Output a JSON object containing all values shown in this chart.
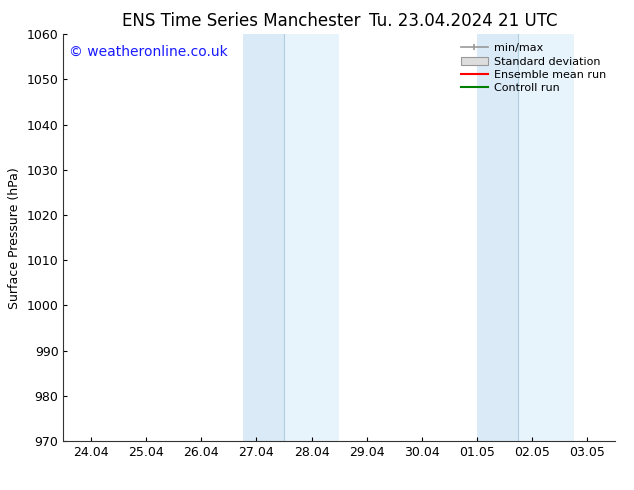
{
  "title_left": "ENS Time Series Manchester",
  "title_right": "Tu. 23.04.2024 21 UTC",
  "ylabel": "Surface Pressure (hPa)",
  "ylim": [
    970,
    1060
  ],
  "yticks": [
    970,
    980,
    990,
    1000,
    1010,
    1020,
    1030,
    1040,
    1050,
    1060
  ],
  "xlim_start": -0.5,
  "xlim_end": 9.5,
  "xtick_labels": [
    "24.04",
    "25.04",
    "26.04",
    "27.04",
    "28.04",
    "29.04",
    "30.04",
    "01.05",
    "02.05",
    "03.05"
  ],
  "xtick_positions": [
    0,
    1,
    2,
    3,
    4,
    5,
    6,
    7,
    8,
    9
  ],
  "shaded_bands": [
    {
      "x_start": 2.75,
      "x_end": 3.5,
      "color": "#daeaf7"
    },
    {
      "x_start": 3.5,
      "x_end": 4.5,
      "color": "#e8f4fc"
    },
    {
      "x_start": 7.0,
      "x_end": 7.75,
      "color": "#daeaf7"
    },
    {
      "x_start": 7.75,
      "x_end": 8.75,
      "color": "#e8f4fc"
    }
  ],
  "band_dividers": [
    {
      "x": 3.5,
      "color": "#b0cfe0"
    },
    {
      "x": 7.75,
      "color": "#b0cfe0"
    }
  ],
  "watermark_text": "© weatheronline.co.uk",
  "watermark_color": "#1a1aff",
  "background_color": "#ffffff",
  "legend_items": [
    {
      "label": "min/max",
      "type": "errorbar",
      "color": "#999999"
    },
    {
      "label": "Standard deviation",
      "type": "patch",
      "color": "#dddddd",
      "edgecolor": "#999999"
    },
    {
      "label": "Ensemble mean run",
      "type": "line",
      "color": "#ff0000",
      "linewidth": 1.5
    },
    {
      "label": "Controll run",
      "type": "line",
      "color": "#008000",
      "linewidth": 1.5
    }
  ],
  "title_fontsize": 12,
  "tick_fontsize": 9,
  "ylabel_fontsize": 9,
  "watermark_fontsize": 10,
  "legend_fontsize": 8
}
